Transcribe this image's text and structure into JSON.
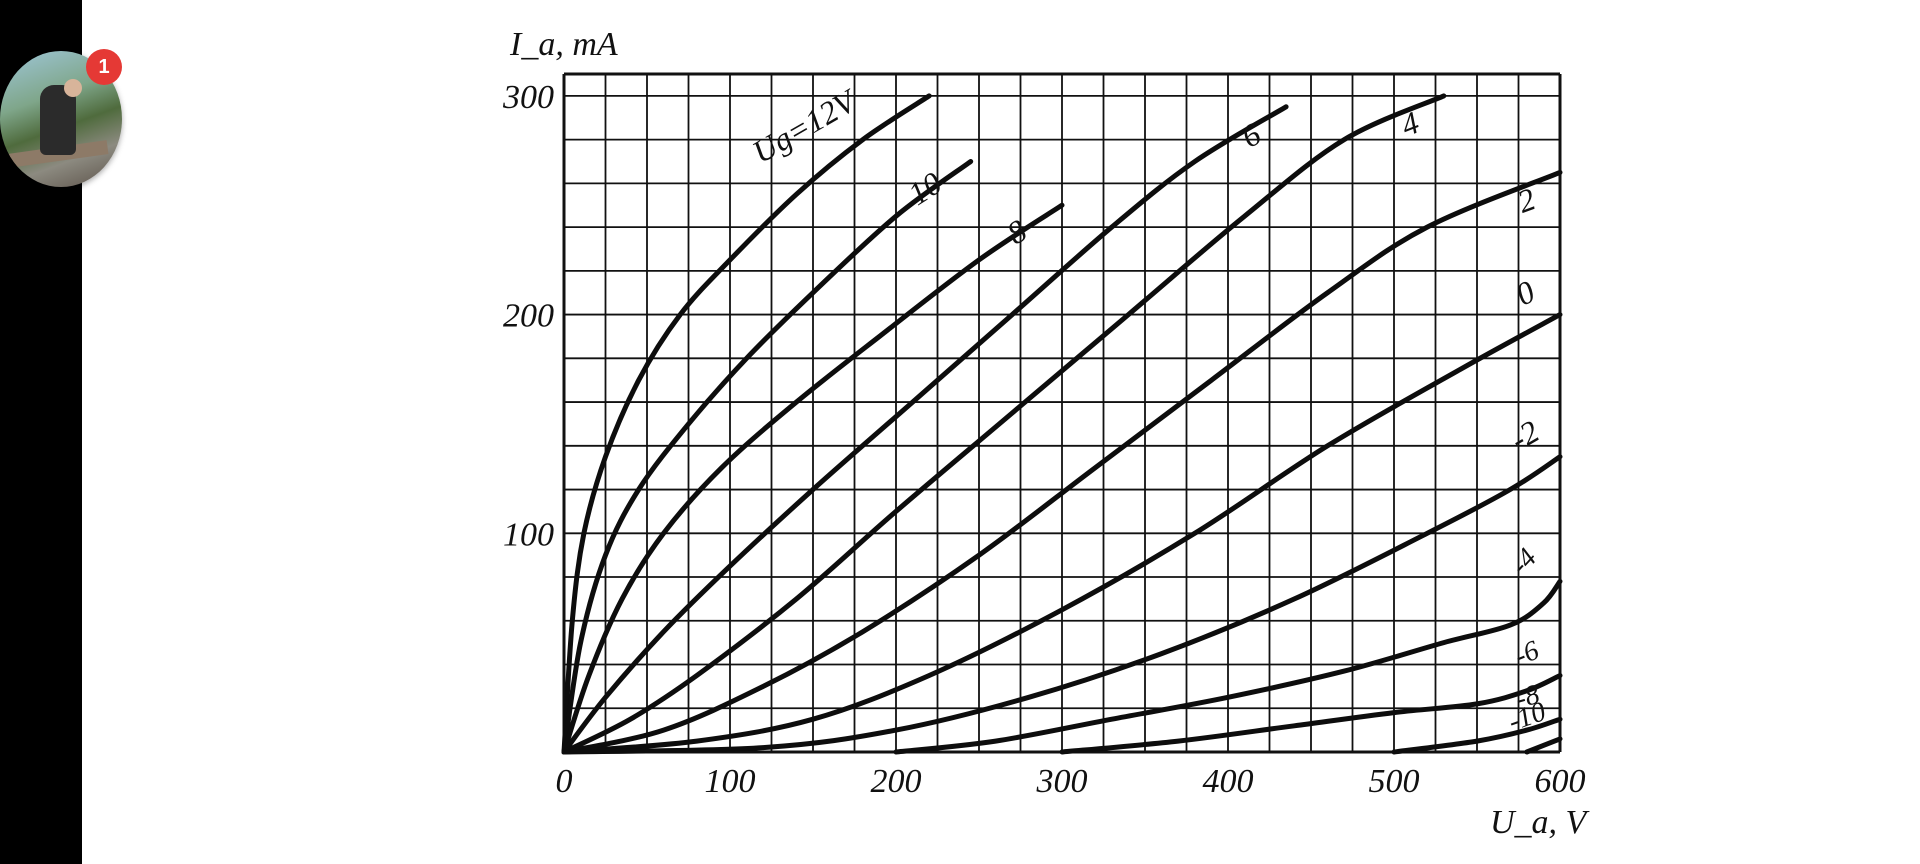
{
  "notification": {
    "badge_count": "1"
  },
  "chart_data": {
    "type": "line",
    "ylabel": "I_a, mA",
    "xlabel": "U_a, V",
    "xlim": [
      0,
      600
    ],
    "ylim": [
      0,
      310
    ],
    "xticks": [
      "0",
      "100",
      "200",
      "300",
      "400",
      "500",
      "600"
    ],
    "yticks": [
      "100",
      "200",
      "300"
    ],
    "grid": true,
    "grid_step_x": 25,
    "grid_step_y": 20,
    "series": [
      {
        "name": "Ug=12V",
        "label": "Ug=12V",
        "points": [
          [
            0,
            0
          ],
          [
            5,
            60
          ],
          [
            12,
            100
          ],
          [
            25,
            135
          ],
          [
            45,
            170
          ],
          [
            70,
            200
          ],
          [
            100,
            225
          ],
          [
            140,
            255
          ],
          [
            180,
            280
          ],
          [
            220,
            300
          ]
        ]
      },
      {
        "name": "10",
        "label": "10",
        "points": [
          [
            0,
            0
          ],
          [
            10,
            50
          ],
          [
            25,
            90
          ],
          [
            45,
            120
          ],
          [
            75,
            150
          ],
          [
            110,
            180
          ],
          [
            150,
            210
          ],
          [
            200,
            245
          ],
          [
            245,
            270
          ]
        ]
      },
      {
        "name": "8",
        "label": "8",
        "points": [
          [
            0,
            0
          ],
          [
            15,
            35
          ],
          [
            35,
            70
          ],
          [
            60,
            100
          ],
          [
            95,
            130
          ],
          [
            140,
            160
          ],
          [
            190,
            190
          ],
          [
            250,
            225
          ],
          [
            300,
            250
          ]
        ]
      },
      {
        "name": "6",
        "label": "6",
        "points": [
          [
            0,
            0
          ],
          [
            25,
            25
          ],
          [
            60,
            55
          ],
          [
            100,
            85
          ],
          [
            150,
            120
          ],
          [
            210,
            160
          ],
          [
            270,
            200
          ],
          [
            330,
            240
          ],
          [
            380,
            270
          ],
          [
            435,
            295
          ]
        ]
      },
      {
        "name": "4",
        "label": "4",
        "points": [
          [
            0,
            0
          ],
          [
            40,
            15
          ],
          [
            80,
            35
          ],
          [
            140,
            70
          ],
          [
            200,
            110
          ],
          [
            270,
            155
          ],
          [
            340,
            200
          ],
          [
            410,
            245
          ],
          [
            470,
            280
          ],
          [
            530,
            300
          ]
        ]
      },
      {
        "name": "2",
        "label": "2",
        "points": [
          [
            0,
            0
          ],
          [
            60,
            10
          ],
          [
            120,
            30
          ],
          [
            180,
            55
          ],
          [
            250,
            90
          ],
          [
            320,
            130
          ],
          [
            390,
            170
          ],
          [
            460,
            210
          ],
          [
            520,
            240
          ],
          [
            600,
            265
          ]
        ]
      },
      {
        "name": "0",
        "label": "0",
        "points": [
          [
            0,
            0
          ],
          [
            80,
            5
          ],
          [
            150,
            15
          ],
          [
            220,
            35
          ],
          [
            300,
            65
          ],
          [
            380,
            100
          ],
          [
            460,
            140
          ],
          [
            540,
            175
          ],
          [
            600,
            200
          ]
        ]
      },
      {
        "name": "-2",
        "label": "-2",
        "points": [
          [
            0,
            0
          ],
          [
            120,
            2
          ],
          [
            200,
            10
          ],
          [
            280,
            25
          ],
          [
            360,
            45
          ],
          [
            440,
            70
          ],
          [
            520,
            100
          ],
          [
            570,
            120
          ],
          [
            600,
            135
          ]
        ]
      },
      {
        "name": "-4",
        "label": "-4",
        "points": [
          [
            200,
            0
          ],
          [
            260,
            5
          ],
          [
            330,
            15
          ],
          [
            400,
            25
          ],
          [
            470,
            37
          ],
          [
            530,
            50
          ],
          [
            570,
            58
          ],
          [
            590,
            68
          ],
          [
            600,
            78
          ]
        ]
      },
      {
        "name": "-6",
        "label": "-6",
        "points": [
          [
            300,
            0
          ],
          [
            370,
            5
          ],
          [
            440,
            12
          ],
          [
            500,
            18
          ],
          [
            550,
            22
          ],
          [
            580,
            28
          ],
          [
            600,
            35
          ]
        ]
      },
      {
        "name": "-8",
        "label": "-8",
        "points": [
          [
            500,
            0
          ],
          [
            550,
            5
          ],
          [
            580,
            10
          ],
          [
            600,
            15
          ]
        ]
      },
      {
        "name": "-10",
        "label": "-10",
        "points": [
          [
            580,
            0
          ],
          [
            600,
            6
          ]
        ]
      }
    ]
  }
}
